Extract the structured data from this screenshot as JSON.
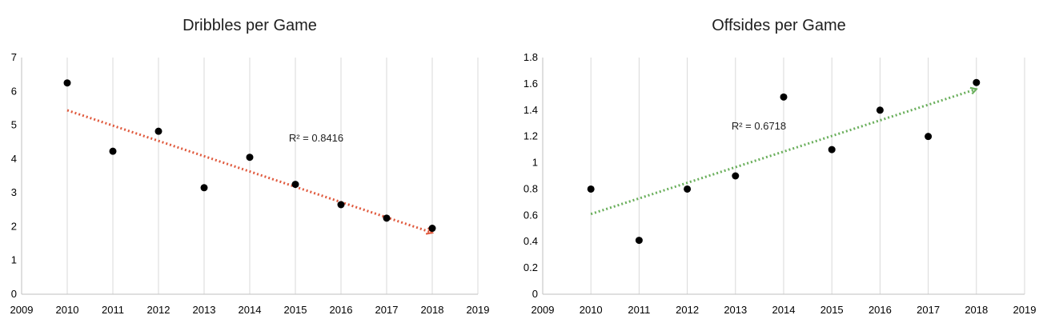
{
  "chart_data": [
    {
      "type": "scatter",
      "title": "Dribbles per Game",
      "xlabel": "",
      "ylabel": "",
      "xlim": [
        2009,
        2019
      ],
      "ylim": [
        0,
        7
      ],
      "x_ticks": [
        "2009",
        "2010",
        "2011",
        "2012",
        "2013",
        "2014",
        "2015",
        "2016",
        "2017",
        "2018",
        "2019"
      ],
      "y_ticks": [
        "0",
        "1",
        "2",
        "3",
        "4",
        "5",
        "6",
        "7"
      ],
      "grid": "vertical",
      "legend": "none",
      "series": [
        {
          "x": [
            2010,
            2011,
            2012,
            2013,
            2014,
            2015,
            2016,
            2017,
            2018
          ],
          "y": [
            6.25,
            4.23,
            4.82,
            3.15,
            4.05,
            3.25,
            2.65,
            2.25,
            1.95
          ],
          "marker_color": "#000000"
        }
      ],
      "trendline": {
        "x": [
          2010,
          2018
        ],
        "y": [
          5.44,
          1.82
        ],
        "style": "dotted-arrow",
        "color": "#e05a3e",
        "label": "R² = 0.8416"
      }
    },
    {
      "type": "scatter",
      "title": "Offsides per Game",
      "xlabel": "",
      "ylabel": "",
      "xlim": [
        2009,
        2019
      ],
      "ylim": [
        0,
        1.8
      ],
      "x_ticks": [
        "2009",
        "2010",
        "2011",
        "2012",
        "2013",
        "2014",
        "2015",
        "2016",
        "2017",
        "2018",
        "2019"
      ],
      "y_ticks": [
        "0",
        "0.2",
        "0.4",
        "0.6",
        "0.8",
        "1",
        "1.2",
        "1.4",
        "1.6",
        "1.8"
      ],
      "grid": "vertical",
      "legend": "none",
      "series": [
        {
          "x": [
            2010,
            2011,
            2012,
            2013,
            2014,
            2015,
            2016,
            2017,
            2018
          ],
          "y": [
            0.8,
            0.41,
            0.8,
            0.9,
            1.5,
            1.1,
            1.4,
            1.2,
            1.61
          ],
          "marker_color": "#000000"
        }
      ],
      "trendline": {
        "x": [
          2010,
          2018
        ],
        "y": [
          0.61,
          1.56
        ],
        "style": "dotted-arrow",
        "color": "#6aaf5c",
        "label": "R² = 0.6718"
      }
    }
  ]
}
